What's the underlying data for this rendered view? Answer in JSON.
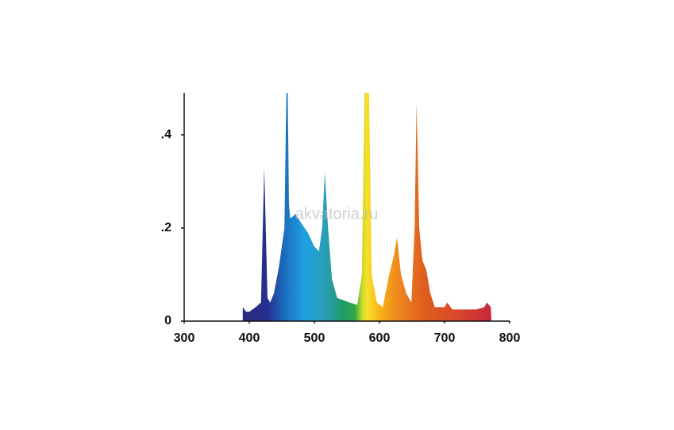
{
  "chart_data": {
    "type": "area",
    "watermark": "akvatoria.ru",
    "x": [
      390,
      395,
      400,
      410,
      418,
      423,
      428,
      432,
      438,
      446,
      454,
      457,
      459,
      461,
      463,
      471,
      480,
      490,
      500,
      507,
      512,
      516,
      521,
      527,
      535,
      554,
      566,
      573,
      577,
      584,
      588,
      596,
      605,
      615,
      622,
      627,
      633,
      641,
      649,
      654,
      657,
      661,
      666,
      672,
      678,
      685,
      700,
      704,
      712,
      737,
      749,
      761,
      765,
      771,
      772
    ],
    "values": [
      0.03,
      0.02,
      0.02,
      0.03,
      0.04,
      0.33,
      0.05,
      0.04,
      0.06,
      0.12,
      0.2,
      0.49,
      0.49,
      0.25,
      0.22,
      0.23,
      0.21,
      0.19,
      0.16,
      0.15,
      0.2,
      0.32,
      0.2,
      0.09,
      0.05,
      0.04,
      0.035,
      0.1,
      0.49,
      0.49,
      0.1,
      0.04,
      0.03,
      0.1,
      0.14,
      0.18,
      0.1,
      0.06,
      0.04,
      0.2,
      0.47,
      0.2,
      0.13,
      0.11,
      0.06,
      0.03,
      0.03,
      0.04,
      0.025,
      0.025,
      0.025,
      0.03,
      0.04,
      0.03,
      0.0
    ],
    "xlim": [
      300,
      800
    ],
    "xticks": [
      300,
      400,
      500,
      600,
      700,
      800
    ],
    "ylim": [
      0,
      0.49
    ],
    "yticks": [
      0,
      {
        "value": 0.2,
        "label": ".2"
      },
      {
        "value": 0.4,
        "label": ".4"
      }
    ],
    "grid": false
  }
}
